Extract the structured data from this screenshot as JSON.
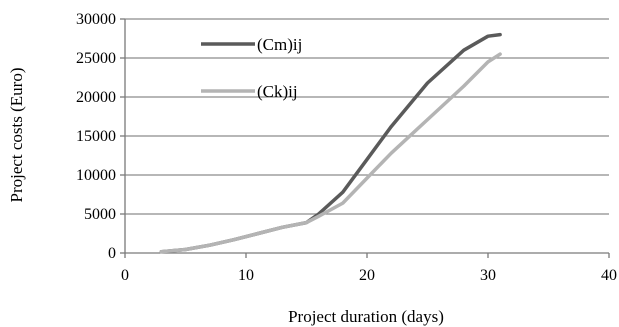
{
  "chart_data": {
    "type": "line",
    "title": "",
    "xlabel": "Project duration (days)",
    "ylabel": "Project costs (Euro)",
    "xlim": [
      0,
      40
    ],
    "ylim": [
      0,
      30000
    ],
    "x_ticks": [
      0,
      10,
      20,
      30,
      40
    ],
    "y_ticks": [
      0,
      5000,
      10000,
      15000,
      20000,
      25000,
      30000
    ],
    "x_tick_labels": [
      "0",
      "10",
      "20",
      "30",
      "40"
    ],
    "y_tick_labels": [
      "0",
      "5000",
      "10000",
      "15000",
      "20000",
      "25000",
      "30000"
    ],
    "grid": "horizontal",
    "legend_position": "top-left inside plot",
    "series": [
      {
        "name": "(Cm)ij",
        "color": "#5a5a5a",
        "x": [
          3,
          5,
          7,
          9,
          11,
          13,
          15,
          16,
          18,
          20,
          22,
          25,
          28,
          30,
          31
        ],
        "y": [
          150,
          450,
          1000,
          1700,
          2500,
          3300,
          3900,
          5000,
          7800,
          12000,
          16200,
          21800,
          26000,
          27800,
          28000
        ]
      },
      {
        "name": "(Ck)ij",
        "color": "#b4b4b4",
        "x": [
          3,
          5,
          7,
          9,
          11,
          13,
          15,
          16,
          18,
          20,
          22,
          25,
          28,
          30,
          31
        ],
        "y": [
          150,
          450,
          1000,
          1700,
          2500,
          3300,
          3900,
          4700,
          6400,
          9600,
          12800,
          17100,
          21400,
          24500,
          25500
        ]
      }
    ]
  }
}
